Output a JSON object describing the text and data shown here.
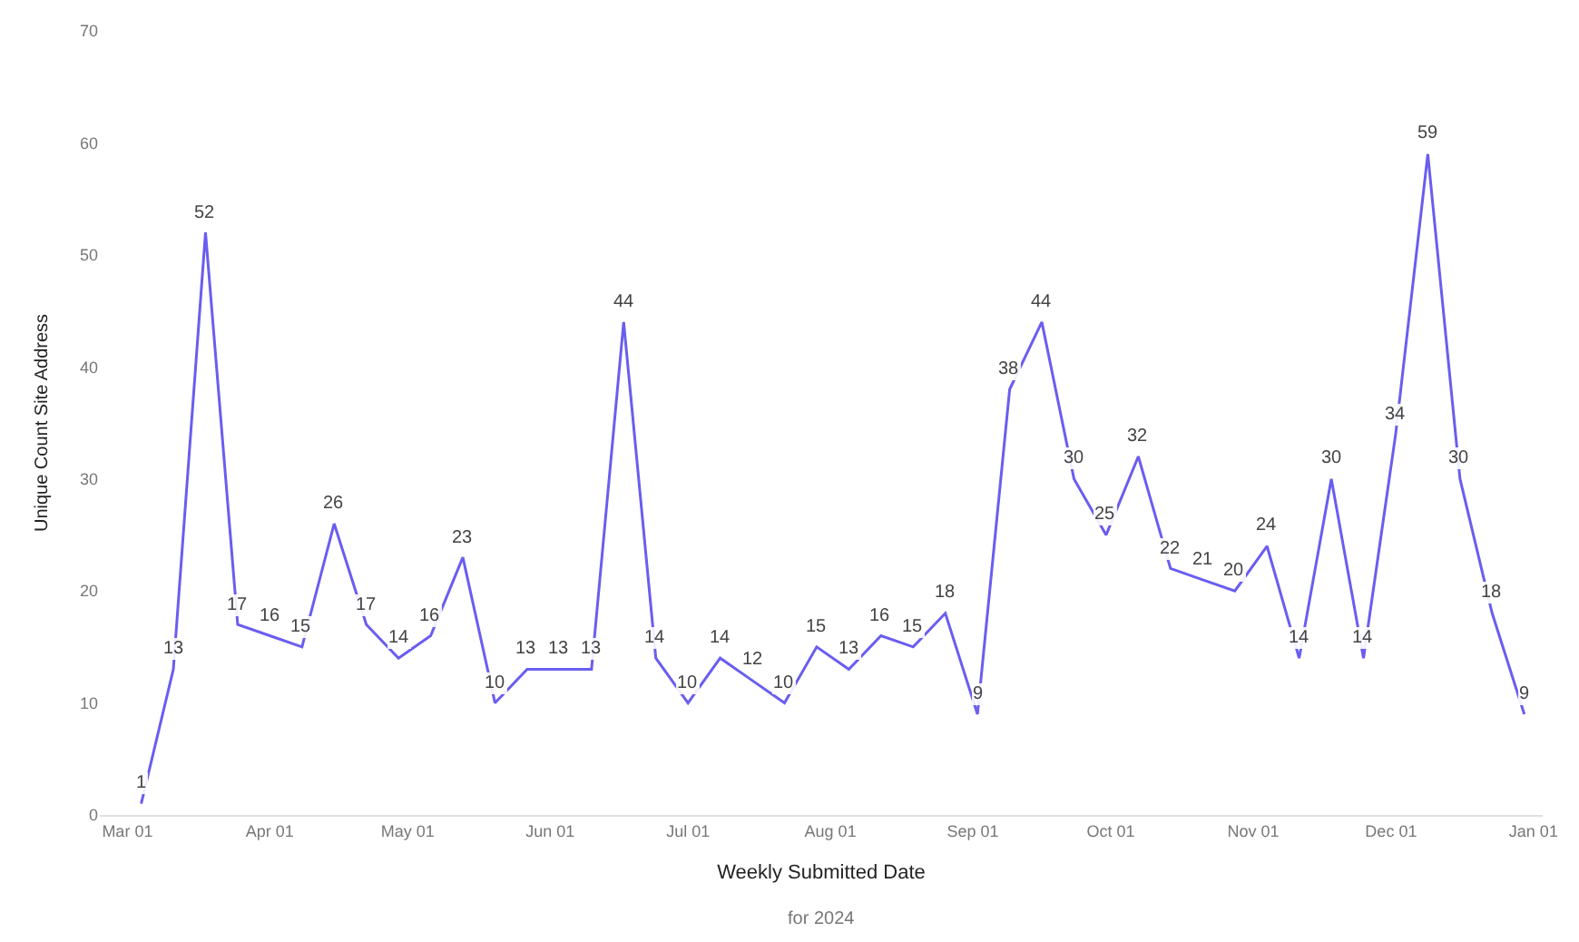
{
  "chart_data": {
    "type": "line",
    "xlabel": "Weekly Submitted Date",
    "ylabel": "Unique Count Site Address",
    "annotations": [
      "for 2024"
    ],
    "x": [
      "2024-03-04",
      "2024-03-11",
      "2024-03-18",
      "2024-03-25",
      "2024-04-01",
      "2024-04-08",
      "2024-04-15",
      "2024-04-22",
      "2024-04-29",
      "2024-05-06",
      "2024-05-13",
      "2024-05-20",
      "2024-05-27",
      "2024-06-03",
      "2024-06-10",
      "2024-06-17",
      "2024-06-24",
      "2024-07-01",
      "2024-07-08",
      "2024-07-15",
      "2024-07-22",
      "2024-07-29",
      "2024-08-05",
      "2024-08-12",
      "2024-08-19",
      "2024-08-26",
      "2024-09-02",
      "2024-09-09",
      "2024-09-16",
      "2024-09-23",
      "2024-09-30",
      "2024-10-07",
      "2024-10-14",
      "2024-10-21",
      "2024-10-28",
      "2024-11-04",
      "2024-11-11",
      "2024-11-18",
      "2024-11-25",
      "2024-12-02",
      "2024-12-09",
      "2024-12-16",
      "2024-12-23",
      "2024-12-30"
    ],
    "series": [
      {
        "color": "#6a5df0",
        "values": [
          1,
          13,
          52,
          17,
          16,
          15,
          26,
          17,
          14,
          16,
          23,
          10,
          13,
          13,
          13,
          44,
          14,
          10,
          14,
          12,
          10,
          15,
          13,
          16,
          15,
          18,
          9,
          38,
          44,
          30,
          25,
          32,
          22,
          21,
          20,
          24,
          14,
          30,
          14,
          34,
          59,
          30,
          18,
          9
        ]
      }
    ],
    "data_labels": true,
    "marker": "none",
    "grid": false,
    "xlim": [
      "2024-02-24",
      "2025-01-03"
    ],
    "xticks": [
      {
        "value": "2024-03-01",
        "label": "Mar 01"
      },
      {
        "value": "2024-04-01",
        "label": "Apr 01"
      },
      {
        "value": "2024-05-01",
        "label": "May 01"
      },
      {
        "value": "2024-06-01",
        "label": "Jun 01"
      },
      {
        "value": "2024-07-01",
        "label": "Jul 01"
      },
      {
        "value": "2024-08-01",
        "label": "Aug 01"
      },
      {
        "value": "2024-09-01",
        "label": "Sep 01"
      },
      {
        "value": "2024-10-01",
        "label": "Oct 01"
      },
      {
        "value": "2024-11-01",
        "label": "Nov 01"
      },
      {
        "value": "2024-12-01",
        "label": "Dec 01"
      },
      {
        "value": "2025-01-01",
        "label": "Jan 01"
      }
    ],
    "ylim": [
      0,
      70
    ],
    "yticks": [
      0,
      10,
      20,
      30,
      40,
      50,
      60,
      70
    ]
  }
}
